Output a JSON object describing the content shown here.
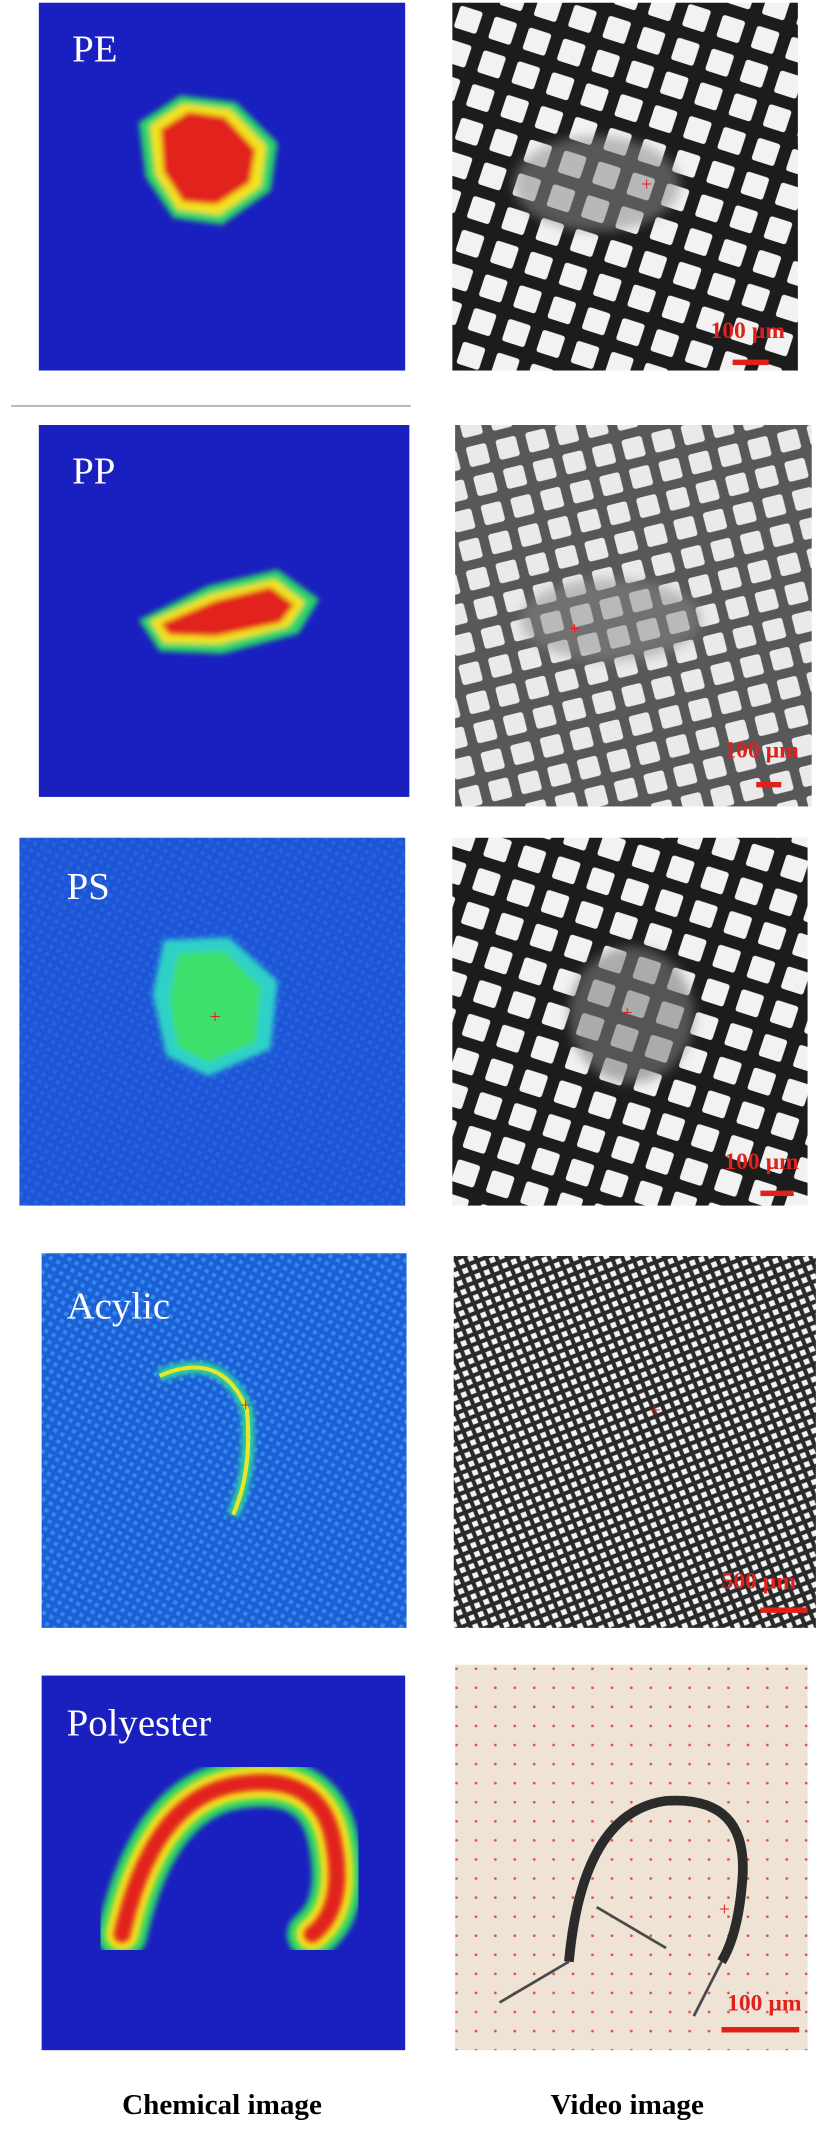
{
  "panels": [
    {
      "label": "PE",
      "scale_bar": "100 µm"
    },
    {
      "label": "PP",
      "scale_bar": "100 µm"
    },
    {
      "label": "PS",
      "scale_bar": "100 µm"
    },
    {
      "label": "Acylic",
      "scale_bar": "500 µm"
    },
    {
      "label": "Polyester",
      "scale_bar": "100 µm"
    }
  ],
  "captions": [
    "Chemical image",
    "Video image"
  ]
}
